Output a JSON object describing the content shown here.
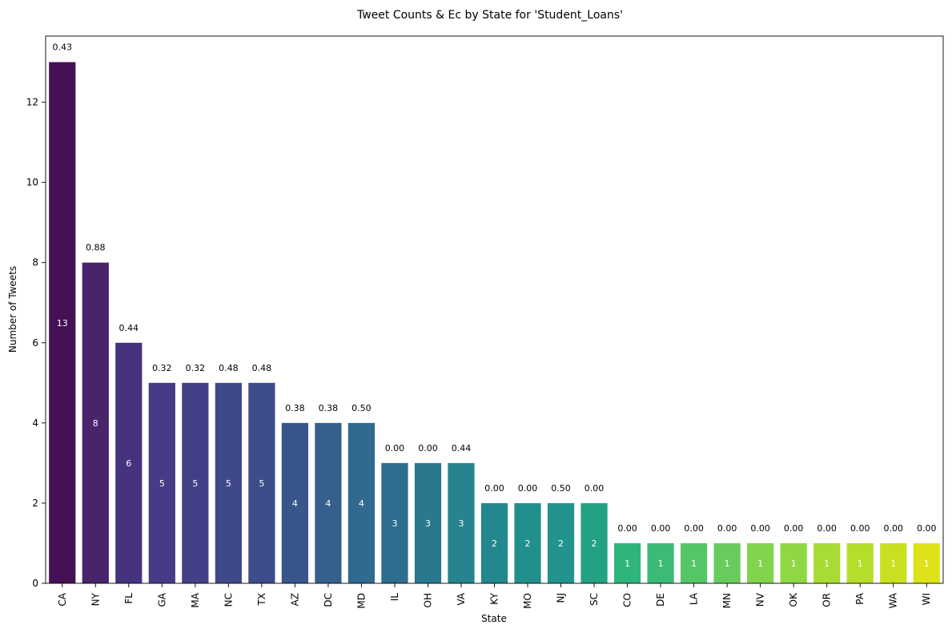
{
  "chart_data": {
    "type": "bar",
    "title": "Tweet Counts & Ec by State for 'Student_Loans'",
    "xlabel": "State",
    "ylabel": "Number of Tweets",
    "ylim": [
      0,
      13.65
    ],
    "yticks": [
      0,
      2,
      4,
      6,
      8,
      10,
      12
    ],
    "grid": false,
    "categories": [
      "CA",
      "NY",
      "FL",
      "GA",
      "MA",
      "NC",
      "TX",
      "AZ",
      "DC",
      "MD",
      "IL",
      "OH",
      "VA",
      "KY",
      "MO",
      "NJ",
      "SC",
      "CO",
      "DE",
      "LA",
      "MN",
      "NV",
      "OK",
      "OR",
      "PA",
      "WA",
      "WI"
    ],
    "values": [
      13,
      8,
      6,
      5,
      5,
      5,
      5,
      4,
      4,
      4,
      3,
      3,
      3,
      2,
      2,
      2,
      2,
      1,
      1,
      1,
      1,
      1,
      1,
      1,
      1,
      1,
      1
    ],
    "ec_labels": [
      "0.43",
      "0.88",
      "0.44",
      "0.32",
      "0.32",
      "0.48",
      "0.48",
      "0.38",
      "0.38",
      "0.50",
      "0.00",
      "0.00",
      "0.44",
      "0.00",
      "0.00",
      "0.50",
      "0.00",
      "0.00",
      "0.00",
      "0.00",
      "0.00",
      "0.00",
      "0.00",
      "0.00",
      "0.00",
      "0.00",
      "0.00"
    ],
    "colors": [
      "#441154",
      "#48246a",
      "#46327e",
      "#463b85",
      "#433f87",
      "#3f4989",
      "#3d4d8a",
      "#39568c",
      "#355f8d",
      "#306a8e",
      "#2e6d8e",
      "#29788e",
      "#26838f",
      "#23878e",
      "#21908d",
      "#22948d",
      "#23a183",
      "#2fb47c",
      "#3bbb75",
      "#55c667",
      "#67cc5c",
      "#82d34e",
      "#8fd744",
      "#a8db34",
      "#b5de2b",
      "#c8e020",
      "#dde318"
    ]
  }
}
